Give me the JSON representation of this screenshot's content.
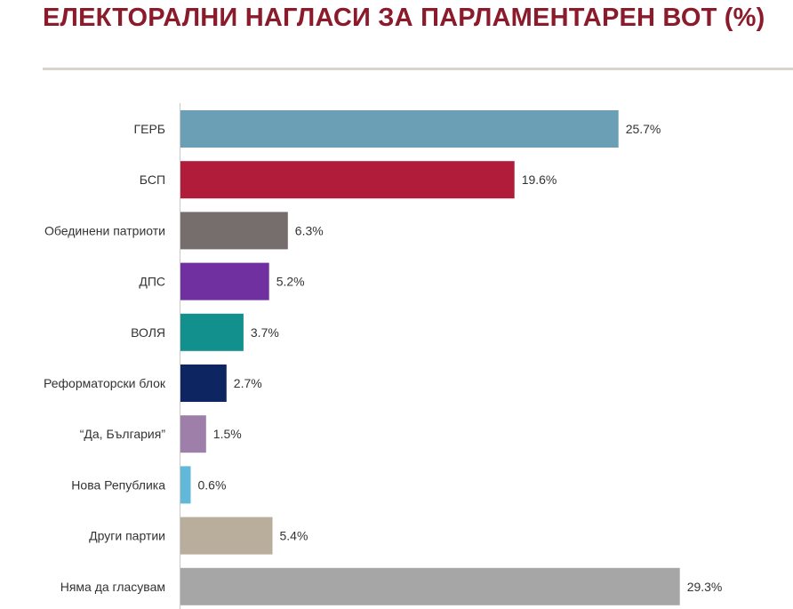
{
  "header": {
    "title": "ЕЛЕКТОРАЛНИ НАГЛАСИ ЗА ПАРЛАМЕНТАРЕН ВОТ (%)"
  },
  "chart_data": {
    "type": "bar",
    "orientation": "horizontal",
    "categories": [
      "ГЕРБ",
      "БСП",
      "Обединени патриоти",
      "ДПС",
      "ВОЛЯ",
      "Реформаторски блок",
      "“Да, България”",
      "Нова Република",
      "Други партии",
      "Няма да гласувам"
    ],
    "values": [
      25.7,
      19.6,
      6.3,
      5.2,
      3.7,
      2.7,
      1.5,
      0.6,
      5.4,
      29.3
    ],
    "value_labels": [
      "25.7%",
      "19.6%",
      "6.3%",
      "5.2%",
      "3.7%",
      "2.7%",
      "1.5%",
      "0.6%",
      "5.4%",
      "29.3%"
    ],
    "colors": [
      "#6a9fb5",
      "#b01c3a",
      "#756e6c",
      "#7030a0",
      "#12908e",
      "#0d2560",
      "#9e7faa",
      "#62b8d8",
      "#b8ae9b",
      "#a6a6a6"
    ],
    "xlim": [
      0,
      30
    ],
    "grid": false,
    "legend": "none"
  }
}
